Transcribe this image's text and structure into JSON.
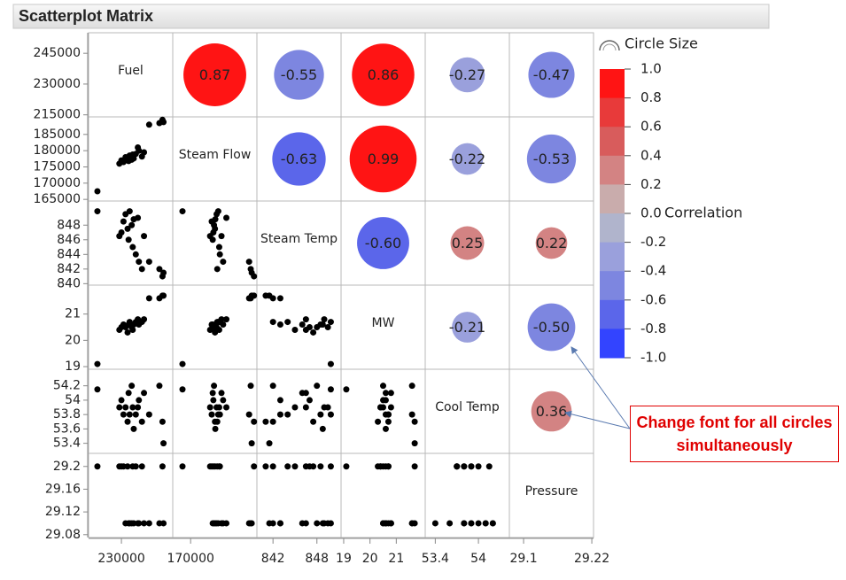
{
  "chart_data": {
    "type": "scatter-matrix",
    "title": "Scatterplot Matrix",
    "variables": [
      {
        "name": "Fuel",
        "lim": [
          214000,
          255000
        ],
        "yticks": [
          215000,
          230000,
          245000
        ],
        "xticks": [
          230000
        ]
      },
      {
        "name": "Steam Flow",
        "lim": [
          164500,
          190400
        ],
        "yticks": [
          165000,
          170000,
          175000,
          180000,
          185000
        ],
        "xticks": [
          170000
        ]
      },
      {
        "name": "Steam Temp",
        "lim": [
          839.8,
          851.3
        ],
        "yticks": [
          840,
          842,
          844,
          846,
          848
        ],
        "xticks": [
          842,
          848
        ]
      },
      {
        "name": "MW",
        "lim": [
          18.9,
          22.1
        ],
        "yticks": [
          19,
          20,
          21
        ],
        "xticks": [
          19,
          20,
          21
        ]
      },
      {
        "name": "Cool Temp",
        "lim": [
          53.26,
          54.43
        ],
        "yticks": [
          53.4,
          53.6,
          53.8,
          54,
          54.2
        ],
        "xticks": [
          53.4,
          54
        ]
      },
      {
        "name": "Pressure",
        "lim": [
          29.075,
          29.223
        ],
        "yticks": [
          29.08,
          29.12,
          29.16,
          29.2
        ],
        "xticks": [
          29.1,
          29.22
        ]
      }
    ],
    "observations": [
      [
        218300,
        167500,
        849.9,
        19.1,
        54.15,
        29.2
      ],
      [
        229000,
        176000,
        846.5,
        20.4,
        53.9,
        29.2
      ],
      [
        230000,
        177000,
        847.0,
        20.5,
        54.0,
        29.2
      ],
      [
        231000,
        176500,
        848.5,
        20.6,
        53.8,
        29.2
      ],
      [
        232000,
        178000,
        849.5,
        20.5,
        53.9,
        29.1
      ],
      [
        233000,
        177500,
        847.5,
        20.3,
        53.7,
        29.2
      ],
      [
        233500,
        176800,
        846.0,
        20.6,
        54.1,
        29.1
      ],
      [
        234000,
        178500,
        849.9,
        20.7,
        53.8,
        29.1
      ],
      [
        235000,
        177200,
        848.0,
        20.5,
        54.2,
        29.1
      ],
      [
        235500,
        178800,
        845.0,
        20.4,
        53.9,
        29.2
      ],
      [
        236000,
        177600,
        848.8,
        20.6,
        53.6,
        29.1
      ],
      [
        237000,
        179000,
        844.0,
        20.7,
        53.8,
        29.2
      ],
      [
        238000,
        181000,
        849.0,
        20.8,
        53.9,
        29.1
      ],
      [
        238500,
        180000,
        843.0,
        20.6,
        54.0,
        29.1
      ],
      [
        240000,
        178200,
        842.0,
        20.7,
        53.7,
        29.2
      ],
      [
        241000,
        179500,
        846.5,
        20.8,
        54.1,
        29.1
      ],
      [
        243500,
        188000,
        843.0,
        21.6,
        53.8,
        29.1
      ],
      [
        248500,
        188500,
        842.0,
        21.6,
        54.2,
        29.1
      ],
      [
        250000,
        189500,
        841.0,
        21.7,
        53.7,
        29.2
      ],
      [
        250500,
        188800,
        841.5,
        21.7,
        53.4,
        29.1
      ]
    ],
    "correlations": [
      [
        0.87,
        -0.55,
        0.86,
        -0.27,
        -0.47
      ],
      [
        -0.63,
        0.99,
        -0.22,
        -0.53
      ],
      [
        -0.6,
        0.25,
        0.22
      ],
      [
        -0.21,
        -0.5
      ],
      [
        0.36
      ]
    ],
    "correlation_labels": [
      [
        "0.87",
        "-0.55",
        "0.86",
        "-0.27",
        "-0.47"
      ],
      [
        "-0.63",
        "0.99",
        "-0.22",
        "-0.53"
      ],
      [
        "-0.60",
        "0.25",
        "0.22"
      ],
      [
        "-0.21",
        "-0.50"
      ],
      [
        "0.36"
      ]
    ],
    "size_legend_title": "Circle Size",
    "colorbar_title": "Correlation",
    "clim": [
      -1,
      1
    ],
    "colorbar_ticks": [
      {
        "value": 1,
        "label": "1.0"
      },
      0.8,
      0.6,
      0.4,
      0.2,
      {
        "value": 0,
        "label": "0.0"
      },
      -0.2,
      -0.4,
      -0.6,
      -0.8,
      {
        "value": -1,
        "label": "-1.0"
      }
    ],
    "colorbar_colors": [
      "#ff1414",
      "#e83a3a",
      "#d85c5c",
      "#d38383",
      "#c9acac",
      "#b0b4cc",
      "#9aa0dc",
      "#7d86e0",
      "#5b66ea",
      "#3344ff"
    ],
    "annotation": "Change font for all circles simultaneously"
  }
}
